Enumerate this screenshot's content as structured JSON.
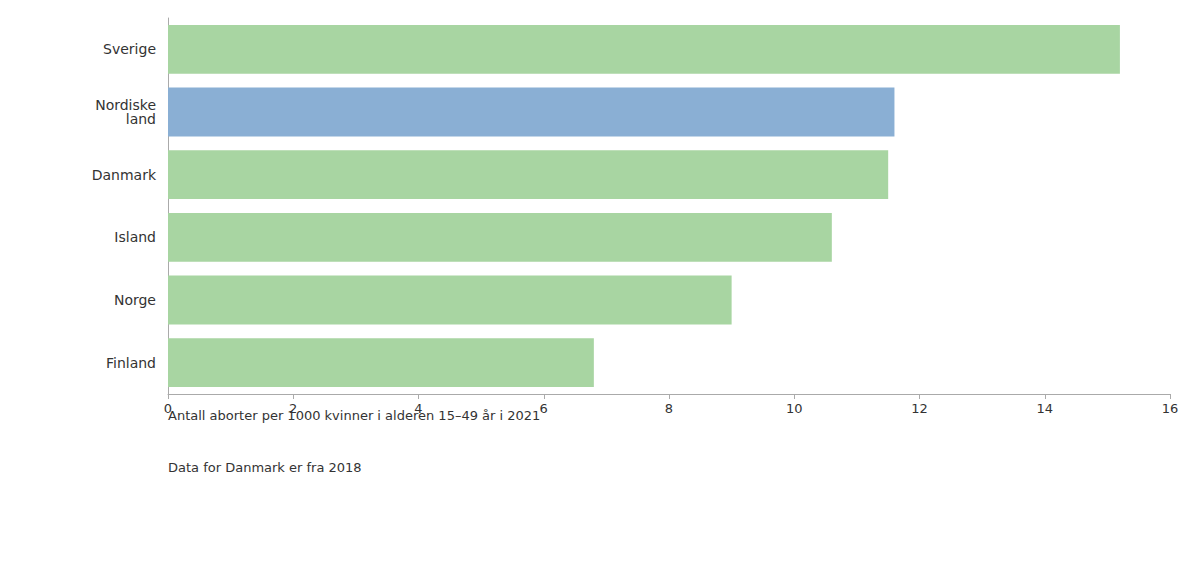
{
  "chart_data": {
    "type": "bar",
    "orientation": "horizontal",
    "categories": [
      "Sverige",
      "Nordiske\n  land",
      "Danmark",
      "Island",
      "Norge",
      "Finland"
    ],
    "values": [
      15.2,
      11.6,
      11.5,
      10.6,
      9.0,
      6.8
    ],
    "colors": [
      "#a8d5a2",
      "#8aafd4",
      "#a8d5a2",
      "#a8d5a2",
      "#a8d5a2",
      "#a8d5a2"
    ],
    "xlim": [
      0,
      16
    ],
    "xticks": [
      0,
      2,
      4,
      6,
      8,
      10,
      12,
      14,
      16
    ],
    "grid": false,
    "annotations": [
      "Antall aborter per 1000 kvinner i alderen 15–49 år i 2021",
      "Data for Danmark er fra 2018"
    ]
  }
}
